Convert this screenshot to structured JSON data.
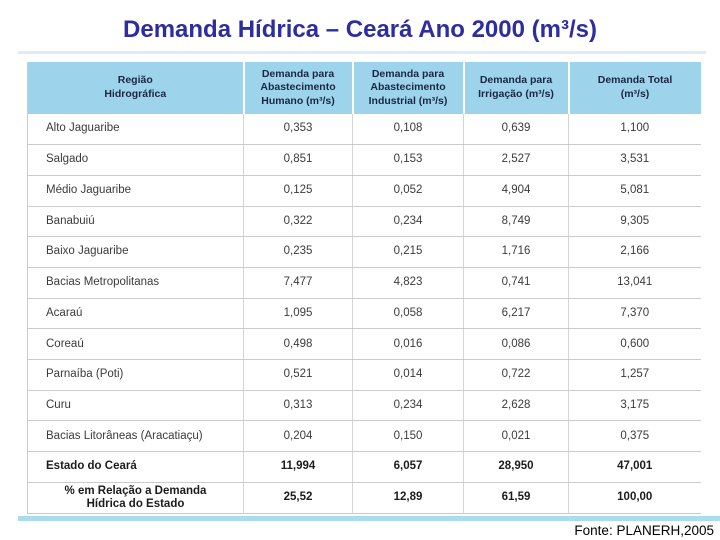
{
  "title": "Demanda Hídrica – Ceará Ano 2000 (m³/s)",
  "source": "Fonte: PLANERH,2005",
  "colors": {
    "title_text": "#2d2da2",
    "header_background": "#9ed3ec",
    "accent_bar": "#aadcee",
    "body_text": "#3b3b3b",
    "grid_line": "#cbcbcb"
  },
  "table": {
    "headers": [
      "Região\nHidrográfica",
      "Demanda para\nAbastecimento\nHumano (m³/s)",
      "Demanda para\nAbastecimento\nIndustrial (m³/s)",
      "Demanda para\nIrrigação (m³/s)",
      "Demanda Total\n(m³/s)"
    ],
    "rows": [
      {
        "region": "Alto Jaguaribe",
        "human": "0,353",
        "industrial": "0,108",
        "irrigation": "0,639",
        "total": "1,100",
        "bold": false,
        "center": false
      },
      {
        "region": "Salgado",
        "human": "0,851",
        "industrial": "0,153",
        "irrigation": "2,527",
        "total": "3,531",
        "bold": false,
        "center": false
      },
      {
        "region": "Médio Jaguaribe",
        "human": "0,125",
        "industrial": "0,052",
        "irrigation": "4,904",
        "total": "5,081",
        "bold": false,
        "center": false
      },
      {
        "region": "Banabuiú",
        "human": "0,322",
        "industrial": "0,234",
        "irrigation": "8,749",
        "total": "9,305",
        "bold": false,
        "center": false
      },
      {
        "region": "Baixo Jaguaribe",
        "human": "0,235",
        "industrial": "0,215",
        "irrigation": "1,716",
        "total": "2,166",
        "bold": false,
        "center": false
      },
      {
        "region": "Bacias Metropolitanas",
        "human": "7,477",
        "industrial": "4,823",
        "irrigation": "0,741",
        "total": "13,041",
        "bold": false,
        "center": false
      },
      {
        "region": "Acaraú",
        "human": "1,095",
        "industrial": "0,058",
        "irrigation": "6,217",
        "total": "7,370",
        "bold": false,
        "center": false
      },
      {
        "region": "Coreaú",
        "human": "0,498",
        "industrial": "0,016",
        "irrigation": "0,086",
        "total": "0,600",
        "bold": false,
        "center": false
      },
      {
        "region": "Parnaíba (Poti)",
        "human": "0,521",
        "industrial": "0,014",
        "irrigation": "0,722",
        "total": "1,257",
        "bold": false,
        "center": false
      },
      {
        "region": "Curu",
        "human": "0,313",
        "industrial": "0,234",
        "irrigation": "2,628",
        "total": "3,175",
        "bold": false,
        "center": false
      },
      {
        "region": "Bacias Litorâneas (Aracatiaçu)",
        "human": "0,204",
        "industrial": "0,150",
        "irrigation": "0,021",
        "total": "0,375",
        "bold": false,
        "center": false
      },
      {
        "region": "Estado do Ceará",
        "human": "11,994",
        "industrial": "6,057",
        "irrigation": "28,950",
        "total": "47,001",
        "bold": true,
        "center": false
      },
      {
        "region": "% em Relação a Demanda\nHídrica do Estado",
        "human": "25,52",
        "industrial": "12,89",
        "irrigation": "61,59",
        "total": "100,00",
        "bold": true,
        "center": true
      }
    ]
  }
}
